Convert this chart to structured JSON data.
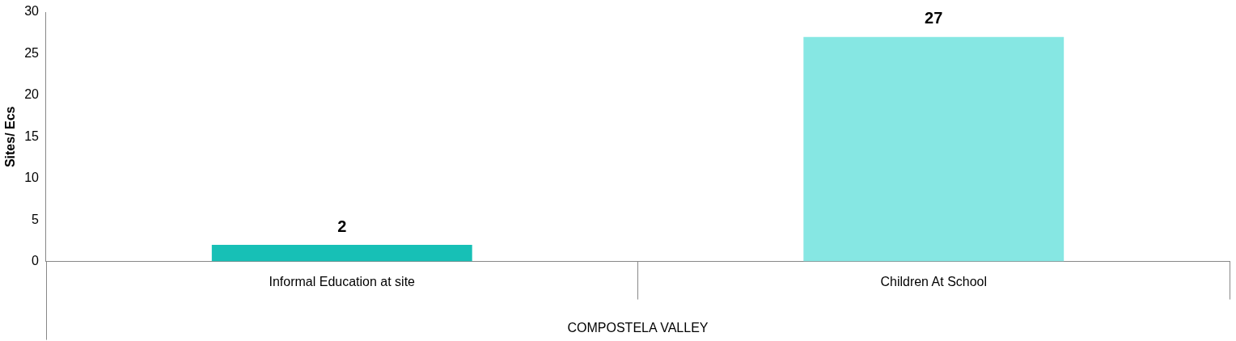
{
  "chart_data": {
    "type": "bar",
    "ylabel": "Sites/ Ecs",
    "xlabel": "COMPOSTELA VALLEY",
    "categories": [
      "Informal Education at site",
      "Children At School"
    ],
    "values": [
      2,
      27
    ],
    "colors": [
      "#17c0b6",
      "#86e7e3"
    ],
    "ylim": [
      0,
      30
    ],
    "yticks": [
      0,
      5,
      10,
      15,
      20,
      25,
      30
    ],
    "grid": false,
    "legend": false,
    "data_labels": true
  }
}
